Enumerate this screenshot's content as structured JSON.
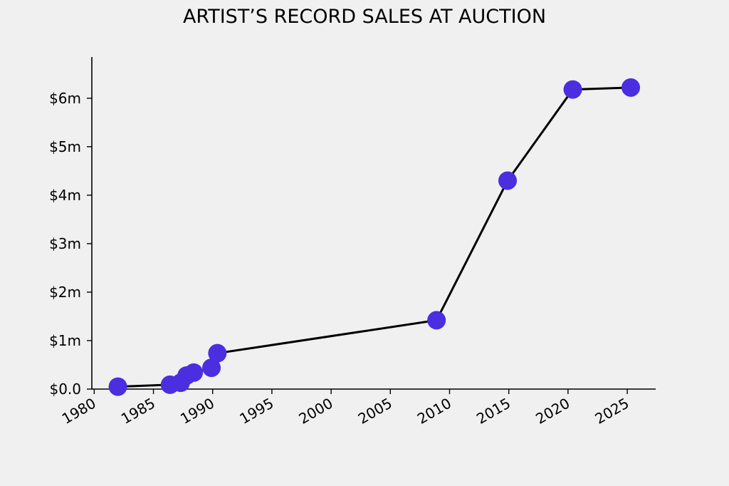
{
  "chart_data": {
    "type": "line",
    "title": "ARTIST’S RECORD SALES AT AUCTION",
    "xlabel": "",
    "ylabel": "",
    "xlim": [
      1979.8,
      1982.0
    ],
    "ylim": [
      0,
      6850000
    ],
    "x_ticks": [
      1980,
      1985,
      1990,
      1995,
      2000,
      2005,
      2010,
      2015,
      2020,
      2025
    ],
    "x_tick_labels": [
      "1980",
      "1985",
      "1990",
      "1995",
      "2000",
      "2005",
      "2010",
      "2015",
      "2020",
      "2025"
    ],
    "y_ticks": [
      0,
      1000000,
      2000000,
      3000000,
      4000000,
      5000000,
      6000000
    ],
    "y_tick_labels": [
      "$0.0",
      "$1m",
      "$2m",
      "$3m",
      "$4m",
      "$5m",
      "$6m"
    ],
    "grid": false,
    "line_color": "#000000",
    "marker_color": "#4a2edf",
    "series": [
      {
        "name": "",
        "points": [
          {
            "x": 1982.0,
            "y": 50000
          },
          {
            "x": 1986.4,
            "y": 90000
          },
          {
            "x": 1987.3,
            "y": 130000
          },
          {
            "x": 1987.8,
            "y": 280000
          },
          {
            "x": 1988.4,
            "y": 340000
          },
          {
            "x": 1989.9,
            "y": 440000
          },
          {
            "x": 1990.4,
            "y": 740000
          },
          {
            "x": 2008.9,
            "y": 1420000
          },
          {
            "x": 2014.9,
            "y": 4300000
          },
          {
            "x": 2020.4,
            "y": 6180000
          },
          {
            "x": 2025.3,
            "y": 6220000
          }
        ]
      }
    ]
  }
}
